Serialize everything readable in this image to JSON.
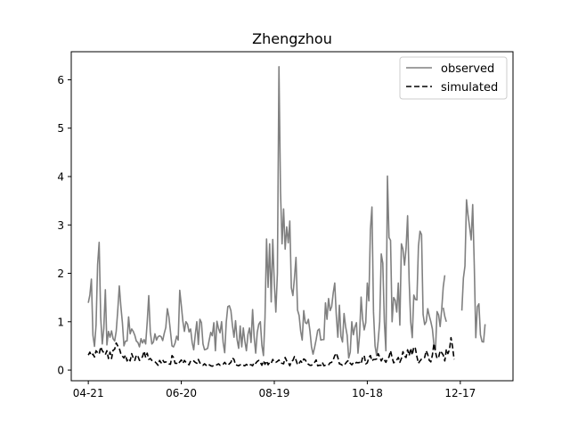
{
  "chart_data": {
    "type": "line",
    "title": "Zhengzhou",
    "xlabel": "",
    "ylabel": "",
    "xlim": [
      -11,
      274
    ],
    "ylim": [
      -0.22,
      6.58
    ],
    "x_ticks": [
      {
        "label": "04-21",
        "day": 0
      },
      {
        "label": "06-20",
        "day": 60
      },
      {
        "label": "08-19",
        "day": 120
      },
      {
        "label": "10-18",
        "day": 180
      },
      {
        "label": "12-17",
        "day": 240
      }
    ],
    "y_ticks": [
      0,
      1,
      2,
      3,
      4,
      5,
      6
    ],
    "grid": false,
    "legend": "top-right",
    "series": [
      {
        "name": "observed",
        "color": "#808080",
        "dash": "solid",
        "segments": [
          {
            "x_start": 0,
            "values": [
              1.39,
              1.55,
              1.88,
              0.72,
              0.49,
              0.93,
              2.18,
              2.64,
              1.09,
              0.54,
              0.86,
              1.66,
              0.52,
              0.8,
              0.68,
              0.81,
              0.65,
              0.6,
              0.8,
              1.23,
              1.74,
              1.32,
              0.98,
              0.5,
              0.6,
              0.6,
              1.1,
              0.75,
              0.85,
              0.8,
              0.72,
              0.6,
              0.57,
              0.48,
              0.65,
              0.56,
              0.63,
              0.54,
              0.99,
              1.54,
              0.79,
              0.54,
              0.58,
              0.75,
              0.62,
              0.69,
              0.71,
              0.69,
              0.61,
              0.76,
              0.88,
              1.27,
              1.1,
              0.8,
              0.5,
              0.48,
              0.56,
              0.7,
              0.62,
              1.65,
              1.34,
              1.01,
              0.8,
              1.0,
              0.95,
              0.79,
              0.85,
              0.57,
              0.42,
              0.73,
              1.0,
              0.53,
              1.05,
              0.98,
              0.54,
              0.42,
              0.43,
              0.45,
              0.62,
              0.78,
              0.71,
              0.98,
              0.4,
              1.01,
              0.86,
              0.77,
              1.0,
              0.57,
              0.36,
              0.99,
              1.31,
              1.33,
              1.23,
              0.92,
              0.68,
              1.02,
              0.63,
              0.45,
              0.91,
              0.48,
              0.87,
              0.6,
              0.4,
              0.74,
              0.87,
              0.57,
              1.25,
              0.68,
              0.35,
              0.78,
              0.95,
              1.0,
              0.51,
              0.3,
              1.08,
              2.71,
              1.71,
              2.61,
              1.41,
              2.7,
              1.8,
              1.2,
              2.0,
              6.27,
              3.7,
              2.61,
              3.33,
              2.5,
              2.96,
              2.63,
              3.08,
              1.7,
              1.54,
              1.91,
              2.33,
              1.24,
              1.13,
              0.81,
              0.62,
              1.23,
              0.98,
              0.96,
              1.05,
              0.81,
              0.48,
              0.33,
              0.47,
              0.63,
              0.82,
              0.85,
              0.62,
              0.63,
              0.63,
              1.39,
              1.05,
              1.48,
              1.23,
              1.31,
              1.59,
              1.8,
              1.13,
              0.68,
              1.34,
              0.7,
              0.58,
              1.17,
              0.9,
              0.72,
              0.25,
              0.37,
              1.0,
              0.73,
              0.89,
              0.98,
              0.35,
              0.72,
              1.51,
              1.05,
              0.83,
              0.98,
              1.8,
              1.43,
              2.9,
              3.37,
              1.2,
              0.5,
              0.3,
              0.6,
              1.0,
              2.4,
              2.21,
              1.0,
              0.4,
              4.01,
              2.74,
              2.68,
              1.0,
              1.5,
              1.44,
              1.2,
              1.8,
              0.93,
              2.61,
              2.5,
              2.17,
              2.51,
              3.19,
              1.85,
              1.0,
              0.67,
              1.55,
              1.46,
              1.45,
              2.56,
              2.87,
              2.8,
              1.15,
              0.94,
              1.0,
              1.27,
              1.12,
              1.0,
              0.85,
              0.52,
              0.43,
              1.21,
              1.14,
              0.9,
              1.25,
              1.72,
              1.96
            ]
          },
          {
            "x_start": 229,
            "values": [
              1.29,
              1.11,
              1.0
            ]
          },
          {
            "x_start": 241,
            "values": [
              1.23,
              1.9,
              2.15,
              3.52,
              3.2,
              2.96,
              2.69,
              3.42,
              2.19,
              0.67,
              1.31,
              1.37,
              0.73,
              0.59,
              0.58,
              0.95
            ]
          }
        ]
      },
      {
        "name": "simulated",
        "color": "#000000",
        "dash": "dashed",
        "segments": [
          {
            "x_start": 0,
            "values": [
              0.31,
              0.37,
              0.3,
              0.33,
              0.27,
              0.4,
              0.36,
              0.33,
              0.48,
              0.4,
              0.36,
              0.32,
              0.4,
              0.24,
              0.37,
              0.24,
              0.41,
              0.43,
              0.56,
              0.5,
              0.45,
              0.34,
              0.29,
              0.25,
              0.31,
              0.19,
              0.24,
              0.19,
              0.34,
              0.25,
              0.2,
              0.31,
              0.29,
              0.2,
              0.23,
              0.28,
              0.39,
              0.26,
              0.35,
              0.22,
              0.24,
              0.2,
              0.18,
              0.17,
              0.14,
              0.1,
              0.2,
              0.15,
              0.21,
              0.16,
              0.17,
              0.16,
              0.13,
              0.12,
              0.3,
              0.26,
              0.14,
              0.14,
              0.12,
              0.17,
              0.21,
              0.14,
              0.2,
              0.16,
              0.13,
              0.11,
              0.19,
              0.2,
              0.19,
              0.16,
              0.14,
              0.22,
              0.15,
              0.12,
              0.1,
              0.13,
              0.1,
              0.13,
              0.11,
              0.09,
              0.08,
              0.1,
              0.1,
              0.11,
              0.13,
              0.1,
              0.1,
              0.12,
              0.16,
              0.12,
              0.1,
              0.13,
              0.16,
              0.25,
              0.22,
              0.11,
              0.1,
              0.09,
              0.11,
              0.12,
              0.1,
              0.09,
              0.12,
              0.09,
              0.11,
              0.11,
              0.09,
              0.16,
              0.14,
              0.18,
              0.2,
              0.16,
              0.1,
              0.19,
              0.12,
              0.19,
              0.11,
              0.16,
              0.14,
              0.22,
              0.17,
              0.16,
              0.18,
              0.21,
              0.15,
              0.14,
              0.13,
              0.26,
              0.19,
              0.16,
              0.09,
              0.18,
              0.2,
              0.28,
              0.21,
              0.11,
              0.14,
              0.19,
              0.15,
              0.23,
              0.21,
              0.15,
              0.12,
              0.1,
              0.1,
              0.13,
              0.16,
              0.21,
              0.09,
              0.1,
              0.1,
              0.16,
              0.09,
              0.1,
              0.1,
              0.11,
              0.15,
              0.16,
              0.21,
              0.3,
              0.35,
              0.26,
              0.13,
              0.12,
              0.1,
              0.1,
              0.14,
              0.18,
              0.2,
              0.14,
              0.11,
              0.15,
              0.13,
              0.16,
              0.15,
              0.16,
              0.13,
              0.27,
              0.3,
              0.13,
              0.15,
              0.26,
              0.3,
              0.19,
              0.22,
              0.22,
              0.23,
              0.34,
              0.27,
              0.19,
              0.25,
              0.21,
              0.16,
              0.24,
              0.27,
              0.4,
              0.26,
              0.15,
              0.18,
              0.21,
              0.26,
              0.16,
              0.24,
              0.38,
              0.29,
              0.26,
              0.42,
              0.3,
              0.45,
              0.31,
              0.48,
              0.45,
              0.28,
              0.14,
              0.19,
              0.23,
              0.24,
              0.26,
              0.4,
              0.32,
              0.2,
              0.17,
              0.31,
              0.55,
              0.37,
              0.24,
              0.26,
              0.4,
              0.36,
              0.31,
              0.19,
              0.43,
              0.34,
              0.42,
              0.67,
              0.48,
              0.22
            ]
          }
        ]
      }
    ]
  }
}
